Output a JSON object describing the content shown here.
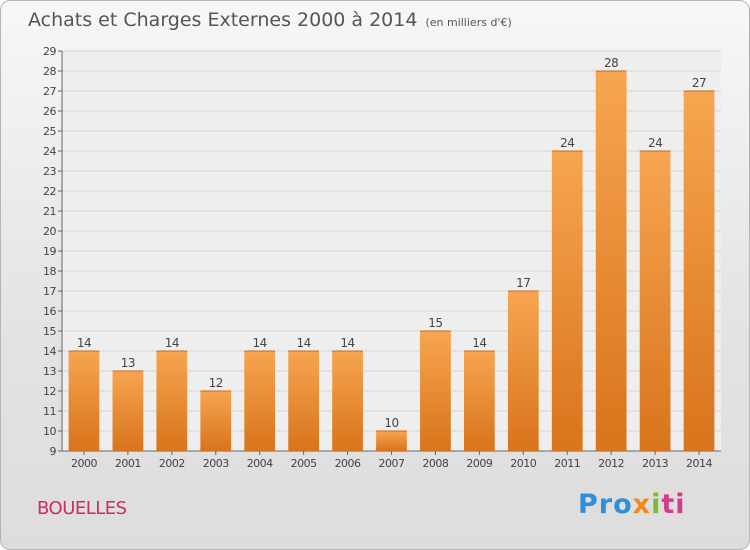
{
  "header": {
    "title": "Achats et Charges Externes 2000 à 2014",
    "subtitle": "(en milliers d'€)"
  },
  "footer": {
    "town": "BOUELLES",
    "logo": [
      "Pro",
      "x",
      "i",
      "ti"
    ]
  },
  "colors": {
    "bar_top": "#f7a550",
    "bar_bottom": "#d8741c",
    "grid": "#d6d6d6",
    "axis": "#666666",
    "town": "#cc2a6a"
  },
  "chart_data": {
    "type": "bar",
    "categories": [
      "2000",
      "2001",
      "2002",
      "2003",
      "2004",
      "2005",
      "2006",
      "2007",
      "2008",
      "2009",
      "2010",
      "2011",
      "2012",
      "2013",
      "2014"
    ],
    "values": [
      14,
      13,
      14,
      12,
      14,
      14,
      14,
      10,
      15,
      14,
      17,
      24,
      28,
      24,
      27
    ],
    "title": "Achats et Charges Externes 2000 à 2014",
    "subtitle": "(en milliers d'€)",
    "xlabel": "",
    "ylabel": "",
    "ylim": [
      9,
      29
    ],
    "yticks": [
      9,
      10,
      11,
      12,
      13,
      14,
      15,
      16,
      17,
      18,
      19,
      20,
      21,
      22,
      23,
      24,
      25,
      26,
      27,
      28,
      29
    ],
    "grid": true,
    "data_labels": true
  }
}
